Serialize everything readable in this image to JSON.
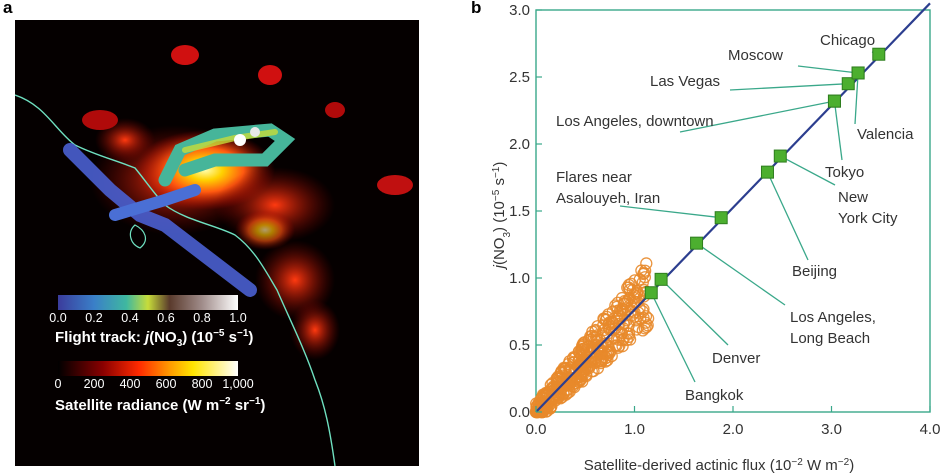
{
  "panel_a": {
    "letter": "a",
    "flight_colorbar": {
      "title_prefix": "Flight track: ",
      "title_j": "j",
      "title_mid": "(NO",
      "title_sub": "3",
      "title_suffix": ") (10",
      "title_exp": "−5",
      "title_unit": " s",
      "title_unit_exp": "−1",
      "title_close": ")",
      "ticks": [
        "0.0",
        "0.2",
        "0.4",
        "0.6",
        "0.8",
        "1.0"
      ],
      "range": [
        0.0,
        1.0
      ]
    },
    "radiance_colorbar": {
      "title_prefix": "Satellite radiance (W m",
      "title_exp1": "−2",
      "title_mid": " sr",
      "title_exp2": "−1",
      "title_close": ")",
      "ticks": [
        "0",
        "200",
        "400",
        "600",
        "800",
        "1,000"
      ],
      "range": [
        0,
        1000
      ]
    }
  },
  "chart_data": {
    "type": "scatter",
    "panel_letter": "b",
    "xlabel_prefix": "Satellite-derived actinic flux (10",
    "xlabel_exp1": "−2",
    "xlabel_mid": " W m",
    "xlabel_exp2": "−2",
    "xlabel_close": ")",
    "ylabel_j": "j",
    "ylabel_rest": "(NO",
    "ylabel_sub": "3",
    "ylabel_mid": ") (10",
    "ylabel_exp1": "−5",
    "ylabel_unit": " s",
    "ylabel_exp2": "−1",
    "ylabel_close": ")",
    "xlim": [
      0.0,
      4.0
    ],
    "ylim": [
      0.0,
      3.0
    ],
    "xticks": [
      "0.0",
      "1.0",
      "2.0",
      "3.0",
      "4.0"
    ],
    "yticks": [
      "0.0",
      "0.5",
      "1.0",
      "1.5",
      "2.0",
      "2.5",
      "3.0"
    ],
    "fit_line": {
      "x": [
        0.0,
        4.0
      ],
      "y": [
        0.0,
        3.1
      ]
    },
    "cities": [
      {
        "label": [
          "Chicago"
        ],
        "x": 3.48,
        "y": 2.67
      },
      {
        "label": [
          "Moscow"
        ],
        "x": 3.27,
        "y": 2.53
      },
      {
        "label": [
          "Las Vegas"
        ],
        "x": 3.17,
        "y": 2.45
      },
      {
        "label": [
          "Valencia"
        ],
        "x": 3.27,
        "y": 2.53
      },
      {
        "label": [
          "Los Angeles, downtown"
        ],
        "x": 3.03,
        "y": 2.32
      },
      {
        "label": [
          "Tokyo"
        ],
        "x": 3.03,
        "y": 2.32
      },
      {
        "label": [
          "New",
          "York City"
        ],
        "x": 2.48,
        "y": 1.91
      },
      {
        "label": [
          "Beijing"
        ],
        "x": 2.35,
        "y": 1.79
      },
      {
        "label": [
          "Flares near",
          "Asalouyeh, Iran"
        ],
        "x": 1.88,
        "y": 1.45
      },
      {
        "label": [
          "Los Angeles,",
          "Long Beach"
        ],
        "x": 1.63,
        "y": 1.26
      },
      {
        "label": [
          "Denver"
        ],
        "x": 1.27,
        "y": 0.99
      },
      {
        "label": [
          "Bangkok"
        ],
        "x": 1.17,
        "y": 0.89
      }
    ],
    "flight_points_note": "",
    "colors": {
      "frame": "#3aa88a",
      "fit": "#2c3e8f",
      "points": "#e8892b",
      "city_marker": "#4caf2f"
    }
  }
}
